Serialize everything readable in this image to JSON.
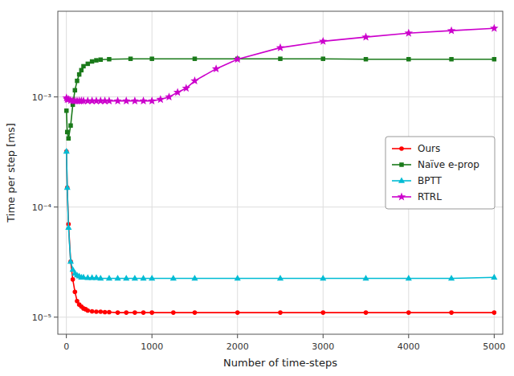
{
  "chart_data": {
    "type": "line",
    "xlabel": "Number of time-steps",
    "ylabel": "Time per step [ms]",
    "log": "y",
    "grid": true,
    "legend": "center right",
    "xlim": [
      -100,
      5100
    ],
    "ylim": [
      7e-06,
      0.006
    ],
    "xticks": [
      0,
      1000,
      2000,
      3000,
      4000,
      5000
    ],
    "yticks": [
      {
        "value": 1e-05,
        "label": "10⁻⁵"
      },
      {
        "value": 0.0001,
        "label": "10⁻⁴"
      },
      {
        "value": 0.001,
        "label": "10⁻³"
      }
    ],
    "series": [
      {
        "name": "Ours",
        "color": "#ff0000",
        "marker": "circle",
        "x": [
          1,
          10,
          25,
          50,
          75,
          100,
          125,
          150,
          175,
          200,
          225,
          250,
          300,
          350,
          400,
          450,
          500,
          600,
          700,
          800,
          900,
          1000,
          1250,
          1500,
          2000,
          2500,
          3000,
          3500,
          4000,
          4500,
          5000
        ],
        "values": [
          0.00032,
          0.00015,
          7e-05,
          3.2e-05,
          2.2e-05,
          1.7e-05,
          1.4e-05,
          1.3e-05,
          1.25e-05,
          1.2e-05,
          1.18e-05,
          1.15e-05,
          1.13e-05,
          1.12e-05,
          1.12e-05,
          1.11e-05,
          1.11e-05,
          1.1e-05,
          1.1e-05,
          1.1e-05,
          1.1e-05,
          1.1e-05,
          1.1e-05,
          1.1e-05,
          1.1e-05,
          1.1e-05,
          1.1e-05,
          1.1e-05,
          1.1e-05,
          1.1e-05,
          1.1e-05
        ]
      },
      {
        "name": "Naïve e-prop",
        "color": "#1a7a1a",
        "marker": "square",
        "x": [
          1,
          10,
          25,
          50,
          75,
          100,
          125,
          150,
          175,
          200,
          250,
          300,
          350,
          400,
          500,
          750,
          1000,
          1500,
          2000,
          2500,
          3000,
          3500,
          4000,
          4500,
          5000
        ],
        "values": [
          0.00075,
          0.00048,
          0.00042,
          0.00055,
          0.00085,
          0.00115,
          0.0014,
          0.0016,
          0.00175,
          0.0019,
          0.002,
          0.0021,
          0.00215,
          0.00218,
          0.0022,
          0.00222,
          0.00222,
          0.00222,
          0.00222,
          0.00222,
          0.00222,
          0.0022,
          0.0022,
          0.0022,
          0.0022
        ]
      },
      {
        "name": "BPTT",
        "color": "#00bcd4",
        "marker": "triangle",
        "x": [
          1,
          10,
          25,
          50,
          75,
          100,
          125,
          150,
          175,
          200,
          250,
          300,
          350,
          400,
          500,
          600,
          700,
          800,
          900,
          1000,
          1250,
          1500,
          2000,
          2500,
          3000,
          3500,
          4000,
          4500,
          5000
        ],
        "values": [
          0.00032,
          0.00015,
          6.5e-05,
          3.2e-05,
          2.7e-05,
          2.5e-05,
          2.4e-05,
          2.35e-05,
          2.3e-05,
          2.3e-05,
          2.28e-05,
          2.28e-05,
          2.28e-05,
          2.25e-05,
          2.25e-05,
          2.25e-05,
          2.25e-05,
          2.25e-05,
          2.25e-05,
          2.25e-05,
          2.25e-05,
          2.25e-05,
          2.25e-05,
          2.25e-05,
          2.25e-05,
          2.25e-05,
          2.25e-05,
          2.25e-05,
          2.3e-05
        ]
      },
      {
        "name": "RTRL",
        "color": "#cc00cc",
        "marker": "star",
        "x": [
          1,
          10,
          25,
          50,
          75,
          100,
          125,
          150,
          175,
          200,
          250,
          300,
          350,
          400,
          450,
          500,
          600,
          700,
          800,
          900,
          1000,
          1100,
          1200,
          1300,
          1400,
          1500,
          1750,
          2000,
          2500,
          3000,
          3500,
          4000,
          4500,
          5000
        ],
        "values": [
          0.00098,
          0.00095,
          0.00095,
          0.00093,
          0.00092,
          0.00092,
          0.00092,
          0.00092,
          0.00092,
          0.00092,
          0.00092,
          0.00092,
          0.00092,
          0.00092,
          0.00092,
          0.00092,
          0.00092,
          0.00092,
          0.00092,
          0.00092,
          0.00092,
          0.00095,
          0.001,
          0.0011,
          0.0012,
          0.0014,
          0.0018,
          0.0022,
          0.0028,
          0.0032,
          0.0035,
          0.0038,
          0.004,
          0.0042
        ]
      }
    ]
  }
}
